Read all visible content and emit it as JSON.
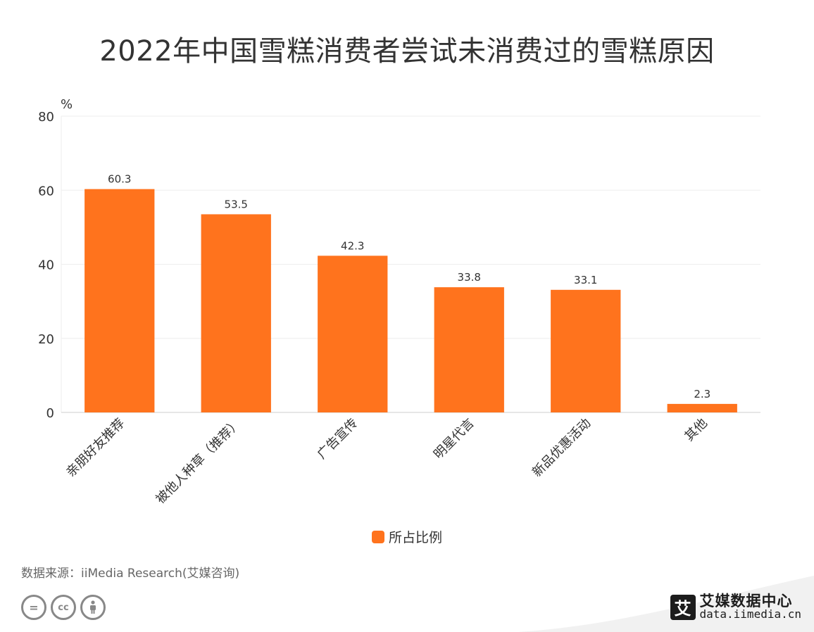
{
  "title": "2022年中国雪糕消费者尝试未消费过的雪糕原因",
  "source": "数据来源：iiMedia Research(艾媒咨询)",
  "logo": {
    "name": "艾媒数据中心",
    "url": "data.iimedia.cn",
    "mark": "艾"
  },
  "cc_icons": [
    "equals-icon",
    "cc-icon",
    "person-icon"
  ],
  "colors": {
    "bar": "#FF731D",
    "grid": "#EEEEEE",
    "axis": "#CCCCCC",
    "text": "#333333"
  },
  "chart_data": {
    "type": "bar",
    "title": "2022年中国雪糕消费者尝试未消费过的雪糕原因",
    "ylabel": "%",
    "ylim": [
      0,
      80
    ],
    "yticks": [
      0,
      20,
      40,
      60,
      80
    ],
    "grid": true,
    "legend_position": "bottom",
    "categories": [
      "亲朋好友推荐",
      "被他人种草（推荐）",
      "广告宣传",
      "明星代言",
      "新品优惠活动",
      "其他"
    ],
    "series": [
      {
        "name": "所占比例",
        "values": [
          60.3,
          53.5,
          42.3,
          33.8,
          33.1,
          2.3
        ]
      }
    ]
  }
}
